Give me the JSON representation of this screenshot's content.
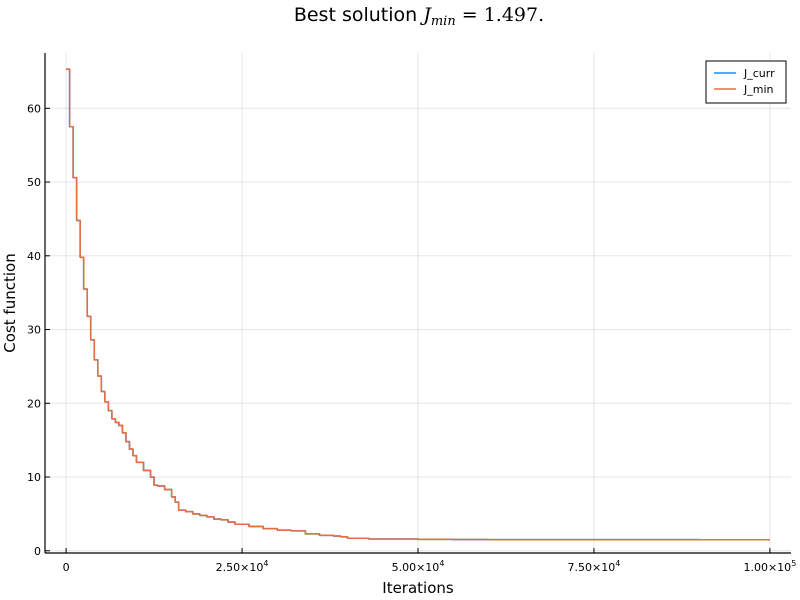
{
  "chart_data": {
    "type": "line",
    "title": {
      "prefix": "Best solution ",
      "symbol": "J",
      "subscript": "min",
      "suffix": " = 1.497."
    },
    "xlabel": "Iterations",
    "ylabel": "Cost function",
    "xlim": [
      -3000,
      103000
    ],
    "ylim": [
      -0.3,
      67.5
    ],
    "grid": true,
    "legend_position": "top-right",
    "x_ticks": [
      {
        "value": 0,
        "mantissa": "0",
        "exp": ""
      },
      {
        "value": 25000,
        "mantissa": "2.50×10",
        "exp": "4"
      },
      {
        "value": 50000,
        "mantissa": "5.00×10",
        "exp": "4"
      },
      {
        "value": 75000,
        "mantissa": "7.50×10",
        "exp": "4"
      },
      {
        "value": 100000,
        "mantissa": "1.00×10",
        "exp": "5"
      }
    ],
    "y_ticks": [
      0,
      10,
      20,
      30,
      40,
      50,
      60
    ],
    "x": [
      0,
      500,
      1000,
      1500,
      2000,
      2500,
      3000,
      3500,
      4000,
      4500,
      5000,
      5500,
      6000,
      6500,
      7000,
      7500,
      8000,
      8500,
      9000,
      9500,
      10000,
      11000,
      12000,
      12500,
      13000,
      14000,
      15000,
      15500,
      16000,
      17000,
      18000,
      19000,
      20000,
      21000,
      22000,
      23000,
      24000,
      26000,
      28000,
      30000,
      32000,
      34000,
      36000,
      38000,
      39000,
      40000,
      43000,
      46000,
      50000,
      55000,
      60000,
      70000,
      80000,
      90000,
      100000
    ],
    "series": [
      {
        "name": "J_curr",
        "color": "#009af9",
        "values": [
          65.3,
          57.5,
          50.6,
          44.8,
          39.8,
          35.5,
          31.8,
          28.6,
          25.9,
          23.7,
          21.6,
          20.2,
          19.0,
          17.9,
          17.4,
          17.0,
          16.0,
          14.8,
          13.8,
          12.9,
          12.0,
          10.9,
          10.0,
          8.9,
          8.8,
          8.3,
          7.3,
          6.6,
          5.5,
          5.3,
          5.0,
          4.8,
          4.6,
          4.3,
          4.2,
          3.9,
          3.6,
          3.3,
          3.0,
          2.8,
          2.7,
          2.3,
          2.1,
          2.0,
          1.9,
          1.7,
          1.6,
          1.6,
          1.55,
          1.52,
          1.51,
          1.5,
          1.5,
          1.497,
          1.497
        ]
      },
      {
        "name": "J_min",
        "color": "#e26f46",
        "values": [
          65.3,
          57.5,
          50.6,
          44.8,
          39.8,
          35.5,
          31.8,
          28.6,
          25.9,
          23.7,
          21.6,
          20.2,
          19.0,
          17.9,
          17.4,
          17.0,
          16.0,
          14.8,
          13.8,
          12.9,
          12.0,
          10.9,
          10.0,
          8.9,
          8.8,
          8.3,
          7.3,
          6.6,
          5.5,
          5.3,
          5.0,
          4.8,
          4.6,
          4.3,
          4.2,
          3.9,
          3.6,
          3.3,
          3.0,
          2.8,
          2.7,
          2.3,
          2.1,
          2.0,
          1.9,
          1.7,
          1.6,
          1.6,
          1.55,
          1.52,
          1.51,
          1.5,
          1.5,
          1.497,
          1.497
        ]
      }
    ]
  }
}
